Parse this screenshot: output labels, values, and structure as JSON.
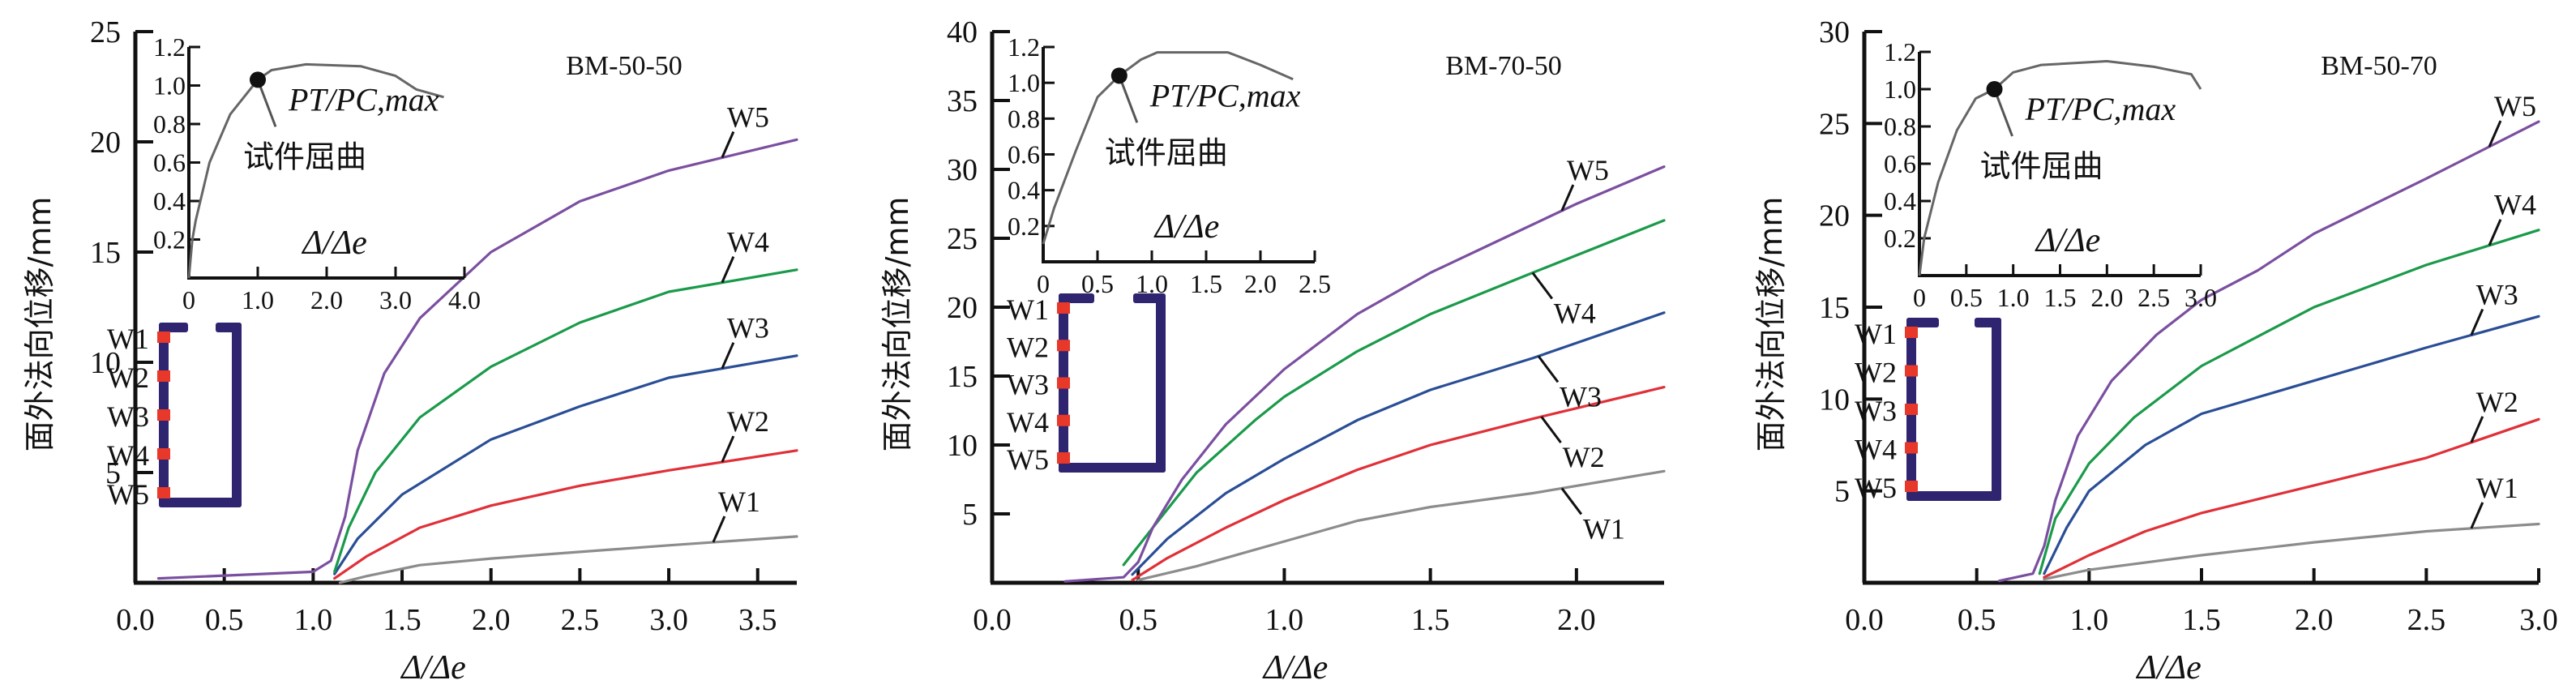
{
  "colors": {
    "W1": "#8c8c8c",
    "W2": "#e03038",
    "W3": "#2a4e96",
    "W4": "#1a9a4a",
    "W5": "#7b4fa0",
    "axis": "#111111",
    "section": "#2e2470",
    "sensor": "#e8382a",
    "inset_curve": "#666666"
  },
  "chart_data": [
    {
      "type": "line",
      "title": "BM-50-50",
      "xlabel": "Δ/Δe",
      "ylabel": "面外法向位移/mm",
      "xlim": [
        0,
        3.72
      ],
      "ylim": [
        0,
        25
      ],
      "xticks": [
        "0.0",
        "0.5",
        "1.0",
        "1.5",
        "2.0",
        "2.5",
        "3.0",
        "3.5"
      ],
      "yticks": [
        "5",
        "10",
        "15",
        "20",
        "25"
      ],
      "series": [
        {
          "name": "W1",
          "label_at": 3.25,
          "x": [
            1.15,
            1.3,
            1.6,
            2.0,
            2.5,
            3.0,
            3.72
          ],
          "y": [
            0,
            0.3,
            0.8,
            1.1,
            1.4,
            1.7,
            2.1
          ]
        },
        {
          "name": "W2",
          "label_at": 3.3,
          "x": [
            1.12,
            1.3,
            1.6,
            2.0,
            2.5,
            3.0,
            3.72
          ],
          "y": [
            0.2,
            1.2,
            2.5,
            3.5,
            4.4,
            5.1,
            6.0
          ]
        },
        {
          "name": "W3",
          "label_at": 3.3,
          "x": [
            1.12,
            1.25,
            1.5,
            2.0,
            2.5,
            3.0,
            3.72
          ],
          "y": [
            0.4,
            2,
            4,
            6.5,
            8,
            9.3,
            10.3
          ]
        },
        {
          "name": "W4",
          "label_at": 3.3,
          "x": [
            1.12,
            1.2,
            1.35,
            1.6,
            2.0,
            2.5,
            3.0,
            3.72
          ],
          "y": [
            0.5,
            2.5,
            5,
            7.5,
            9.8,
            11.8,
            13.2,
            14.2
          ]
        },
        {
          "name": "W5",
          "label_at": 3.3,
          "x": [
            0.13,
            1.0,
            1.1,
            1.18,
            1.25,
            1.4,
            1.6,
            2.0,
            2.5,
            3.0,
            3.72
          ],
          "y": [
            0.2,
            0.5,
            1,
            3,
            6,
            9.5,
            12,
            15,
            17.3,
            18.7,
            20.1
          ]
        }
      ],
      "inset": {
        "xlabel": "Δ/Δe",
        "annotation": "PT/PC,max",
        "annotation_cn": "试件屈曲",
        "xlim": [
          0,
          4.0
        ],
        "ylim": [
          0,
          1.2
        ],
        "xticks": [
          "0",
          "1.0",
          "2.0",
          "3.0",
          "4.0"
        ],
        "yticks": [
          "0.2",
          "0.4",
          "0.6",
          "0.8",
          "1.0",
          "1.2"
        ],
        "buckling_point": [
          1.0,
          1.03
        ],
        "x": [
          0,
          0.05,
          0.1,
          0.3,
          0.6,
          1.0,
          1.2,
          1.7,
          2.5,
          3.0,
          3.3,
          3.7
        ],
        "y": [
          0,
          0.2,
          0.3,
          0.6,
          0.85,
          1.03,
          1.08,
          1.11,
          1.1,
          1.05,
          0.98,
          0.94
        ]
      },
      "section_labels": [
        "W1",
        "W2",
        "W3",
        "W4",
        "W5"
      ]
    },
    {
      "type": "line",
      "title": "BM-70-50",
      "xlabel": "Δ/Δe",
      "ylabel": "面外法向位移/mm",
      "xlim": [
        0,
        2.3
      ],
      "ylim": [
        0,
        40
      ],
      "xticks": [
        "0.0",
        "0.5",
        "1.0",
        "1.5",
        "2.0"
      ],
      "yticks": [
        "5",
        "10",
        "15",
        "20",
        "25",
        "30",
        "35",
        "40"
      ],
      "series": [
        {
          "name": "W1",
          "label_at": 1.95,
          "x": [
            0.5,
            0.7,
            1.0,
            1.25,
            1.5,
            1.85,
            2.3
          ],
          "y": [
            0.2,
            1.2,
            3,
            4.5,
            5.5,
            6.5,
            8.1
          ]
        },
        {
          "name": "W2",
          "label_at": 1.88,
          "x": [
            0.48,
            0.6,
            0.8,
            1.0,
            1.25,
            1.5,
            1.85,
            2.3
          ],
          "y": [
            0.2,
            1.8,
            4,
            6,
            8.2,
            10,
            11.9,
            14.2
          ]
        },
        {
          "name": "W3",
          "label_at": 1.87,
          "x": [
            0.48,
            0.6,
            0.8,
            1.0,
            1.25,
            1.5,
            1.85,
            2.3
          ],
          "y": [
            0.6,
            3.2,
            6.5,
            9,
            11.8,
            14,
            16.3,
            19.6
          ]
        },
        {
          "name": "W4",
          "label_at": 1.85,
          "x": [
            0.45,
            0.55,
            0.7,
            0.9,
            1.0,
            1.25,
            1.5,
            1.85,
            2.3
          ],
          "y": [
            1.3,
            4,
            8,
            11.8,
            13.5,
            16.8,
            19.5,
            22.5,
            26.3
          ]
        },
        {
          "name": "W5",
          "label_at": 1.95,
          "x": [
            0.25,
            0.45,
            0.5,
            0.55,
            0.65,
            0.8,
            1.0,
            1.25,
            1.5,
            1.75,
            2.0,
            2.3
          ],
          "y": [
            0.1,
            0.4,
            1.5,
            4,
            7.5,
            11.5,
            15.5,
            19.5,
            22.5,
            25,
            27.5,
            30.2
          ]
        }
      ],
      "inset": {
        "xlabel": "Δ/Δe",
        "annotation": "PT/PC,max",
        "annotation_cn": "试件屈曲",
        "xlim": [
          0,
          2.5
        ],
        "ylim": [
          0,
          1.2
        ],
        "xticks": [
          "0",
          "0.5",
          "1.0",
          "1.5",
          "2.0",
          "2.5"
        ],
        "yticks": [
          "0.2",
          "0.4",
          "0.6",
          "0.8",
          "1.0",
          "1.2"
        ],
        "buckling_point": [
          0.7,
          1.04
        ],
        "x": [
          0,
          0.1,
          0.3,
          0.5,
          0.7,
          0.9,
          1.05,
          1.7,
          2.0,
          2.3
        ],
        "y": [
          0.1,
          0.3,
          0.62,
          0.92,
          1.04,
          1.13,
          1.17,
          1.17,
          1.1,
          1.02
        ]
      },
      "section_labels": [
        "W1",
        "W2",
        "W3",
        "W4",
        "W5"
      ]
    },
    {
      "type": "line",
      "title": "BM-50-70",
      "xlabel": "Δ/Δe",
      "ylabel": "面外法向位移/mm",
      "xlim": [
        0,
        3.0
      ],
      "ylim": [
        0,
        30
      ],
      "xticks": [
        "0.0",
        "0.5",
        "1.0",
        "1.5",
        "2.0",
        "2.5",
        "3.0"
      ],
      "yticks": [
        "5",
        "10",
        "15",
        "20",
        "25",
        "30"
      ],
      "series": [
        {
          "name": "W1",
          "label_at": 2.7,
          "x": [
            0.8,
            1.0,
            1.5,
            2.0,
            2.5,
            3.0
          ],
          "y": [
            0.2,
            0.7,
            1.5,
            2.2,
            2.8,
            3.2
          ]
        },
        {
          "name": "W2",
          "label_at": 2.7,
          "x": [
            0.8,
            1.0,
            1.25,
            1.5,
            2.0,
            2.5,
            3.0
          ],
          "y": [
            0.3,
            1.5,
            2.8,
            3.8,
            5.3,
            6.8,
            8.9
          ]
        },
        {
          "name": "W3",
          "label_at": 2.7,
          "x": [
            0.8,
            0.9,
            1.0,
            1.25,
            1.5,
            2.0,
            2.5,
            3.0
          ],
          "y": [
            0.5,
            3,
            5,
            7.5,
            9.2,
            11,
            12.8,
            14.5
          ]
        },
        {
          "name": "W4",
          "label_at": 2.78,
          "x": [
            0.78,
            0.85,
            1.0,
            1.2,
            1.5,
            2.0,
            2.5,
            3.0
          ],
          "y": [
            0.5,
            3.5,
            6.5,
            9,
            11.8,
            15,
            17.3,
            19.2
          ]
        },
        {
          "name": "W5",
          "label_at": 2.78,
          "x": [
            0.6,
            0.75,
            0.8,
            0.85,
            0.95,
            1.1,
            1.3,
            1.5,
            1.75,
            2.0,
            2.5,
            3.0
          ],
          "y": [
            0.1,
            0.5,
            2,
            4.5,
            8,
            11,
            13.5,
            15.4,
            17,
            19,
            22,
            25.1
          ]
        }
      ],
      "inset": {
        "xlabel": "Δ/Δe",
        "annotation": "PT/PC,max",
        "annotation_cn": "试件屈曲",
        "xlim": [
          0,
          3.0
        ],
        "ylim": [
          0,
          1.2
        ],
        "xticks": [
          "0",
          "0.5",
          "1.0",
          "1.5",
          "2.0",
          "2.5",
          "3.0"
        ],
        "yticks": [
          "0.2",
          "0.4",
          "0.6",
          "0.8",
          "1.0",
          "1.2"
        ],
        "buckling_point": [
          0.8,
          1.0
        ],
        "x": [
          0,
          0.05,
          0.2,
          0.4,
          0.6,
          0.8,
          1.0,
          1.3,
          2.0,
          2.5,
          2.9,
          3.0
        ],
        "y": [
          0,
          0.2,
          0.5,
          0.78,
          0.95,
          1.0,
          1.09,
          1.13,
          1.15,
          1.12,
          1.08,
          1.0
        ]
      },
      "section_labels": [
        "W1",
        "W2",
        "W3",
        "W4",
        "W5"
      ]
    }
  ]
}
